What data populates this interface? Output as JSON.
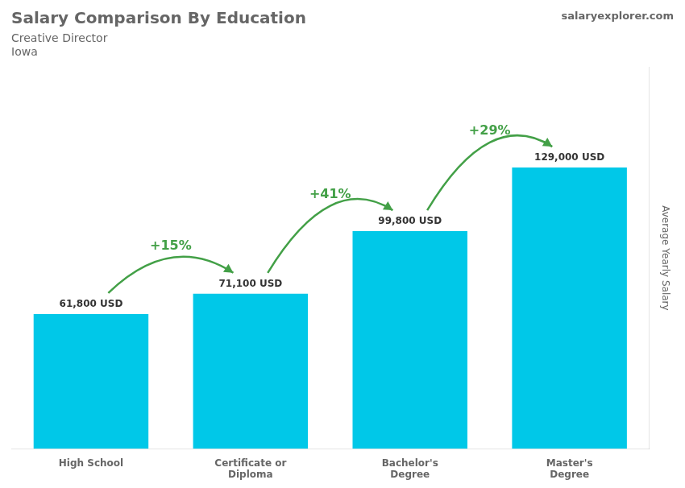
{
  "chart_data": {
    "type": "bar",
    "title": "Salary Comparison By Education",
    "subtitle": [
      "Creative Director",
      "Iowa"
    ],
    "ylabel": "Average Yearly Salary",
    "categories": [
      "High School",
      "Certificate or\nDiploma",
      "Bachelor's\nDegree",
      "Master's\nDegree"
    ],
    "values": [
      61800,
      71100,
      99800,
      129000
    ],
    "value_labels": [
      "61,800 USD",
      "71,100 USD",
      "99,800 USD",
      "129,000 USD"
    ],
    "data_labels": true,
    "color": "#00c8e8",
    "ylim": [
      0,
      175000
    ],
    "grid": false,
    "tick_labels": "x",
    "annotations": [
      {
        "text": "+15%",
        "from": "High School",
        "to": "Certificate or\nDiploma"
      },
      {
        "text": "+41%",
        "from": "Certificate or\nDiploma",
        "to": "Bachelor's\nDegree"
      },
      {
        "text": "+29%",
        "from": "Bachelor's\nDegree",
        "to": "Master's\nDegree"
      },
      {
        "text": "salaryexplorer.com"
      }
    ]
  }
}
